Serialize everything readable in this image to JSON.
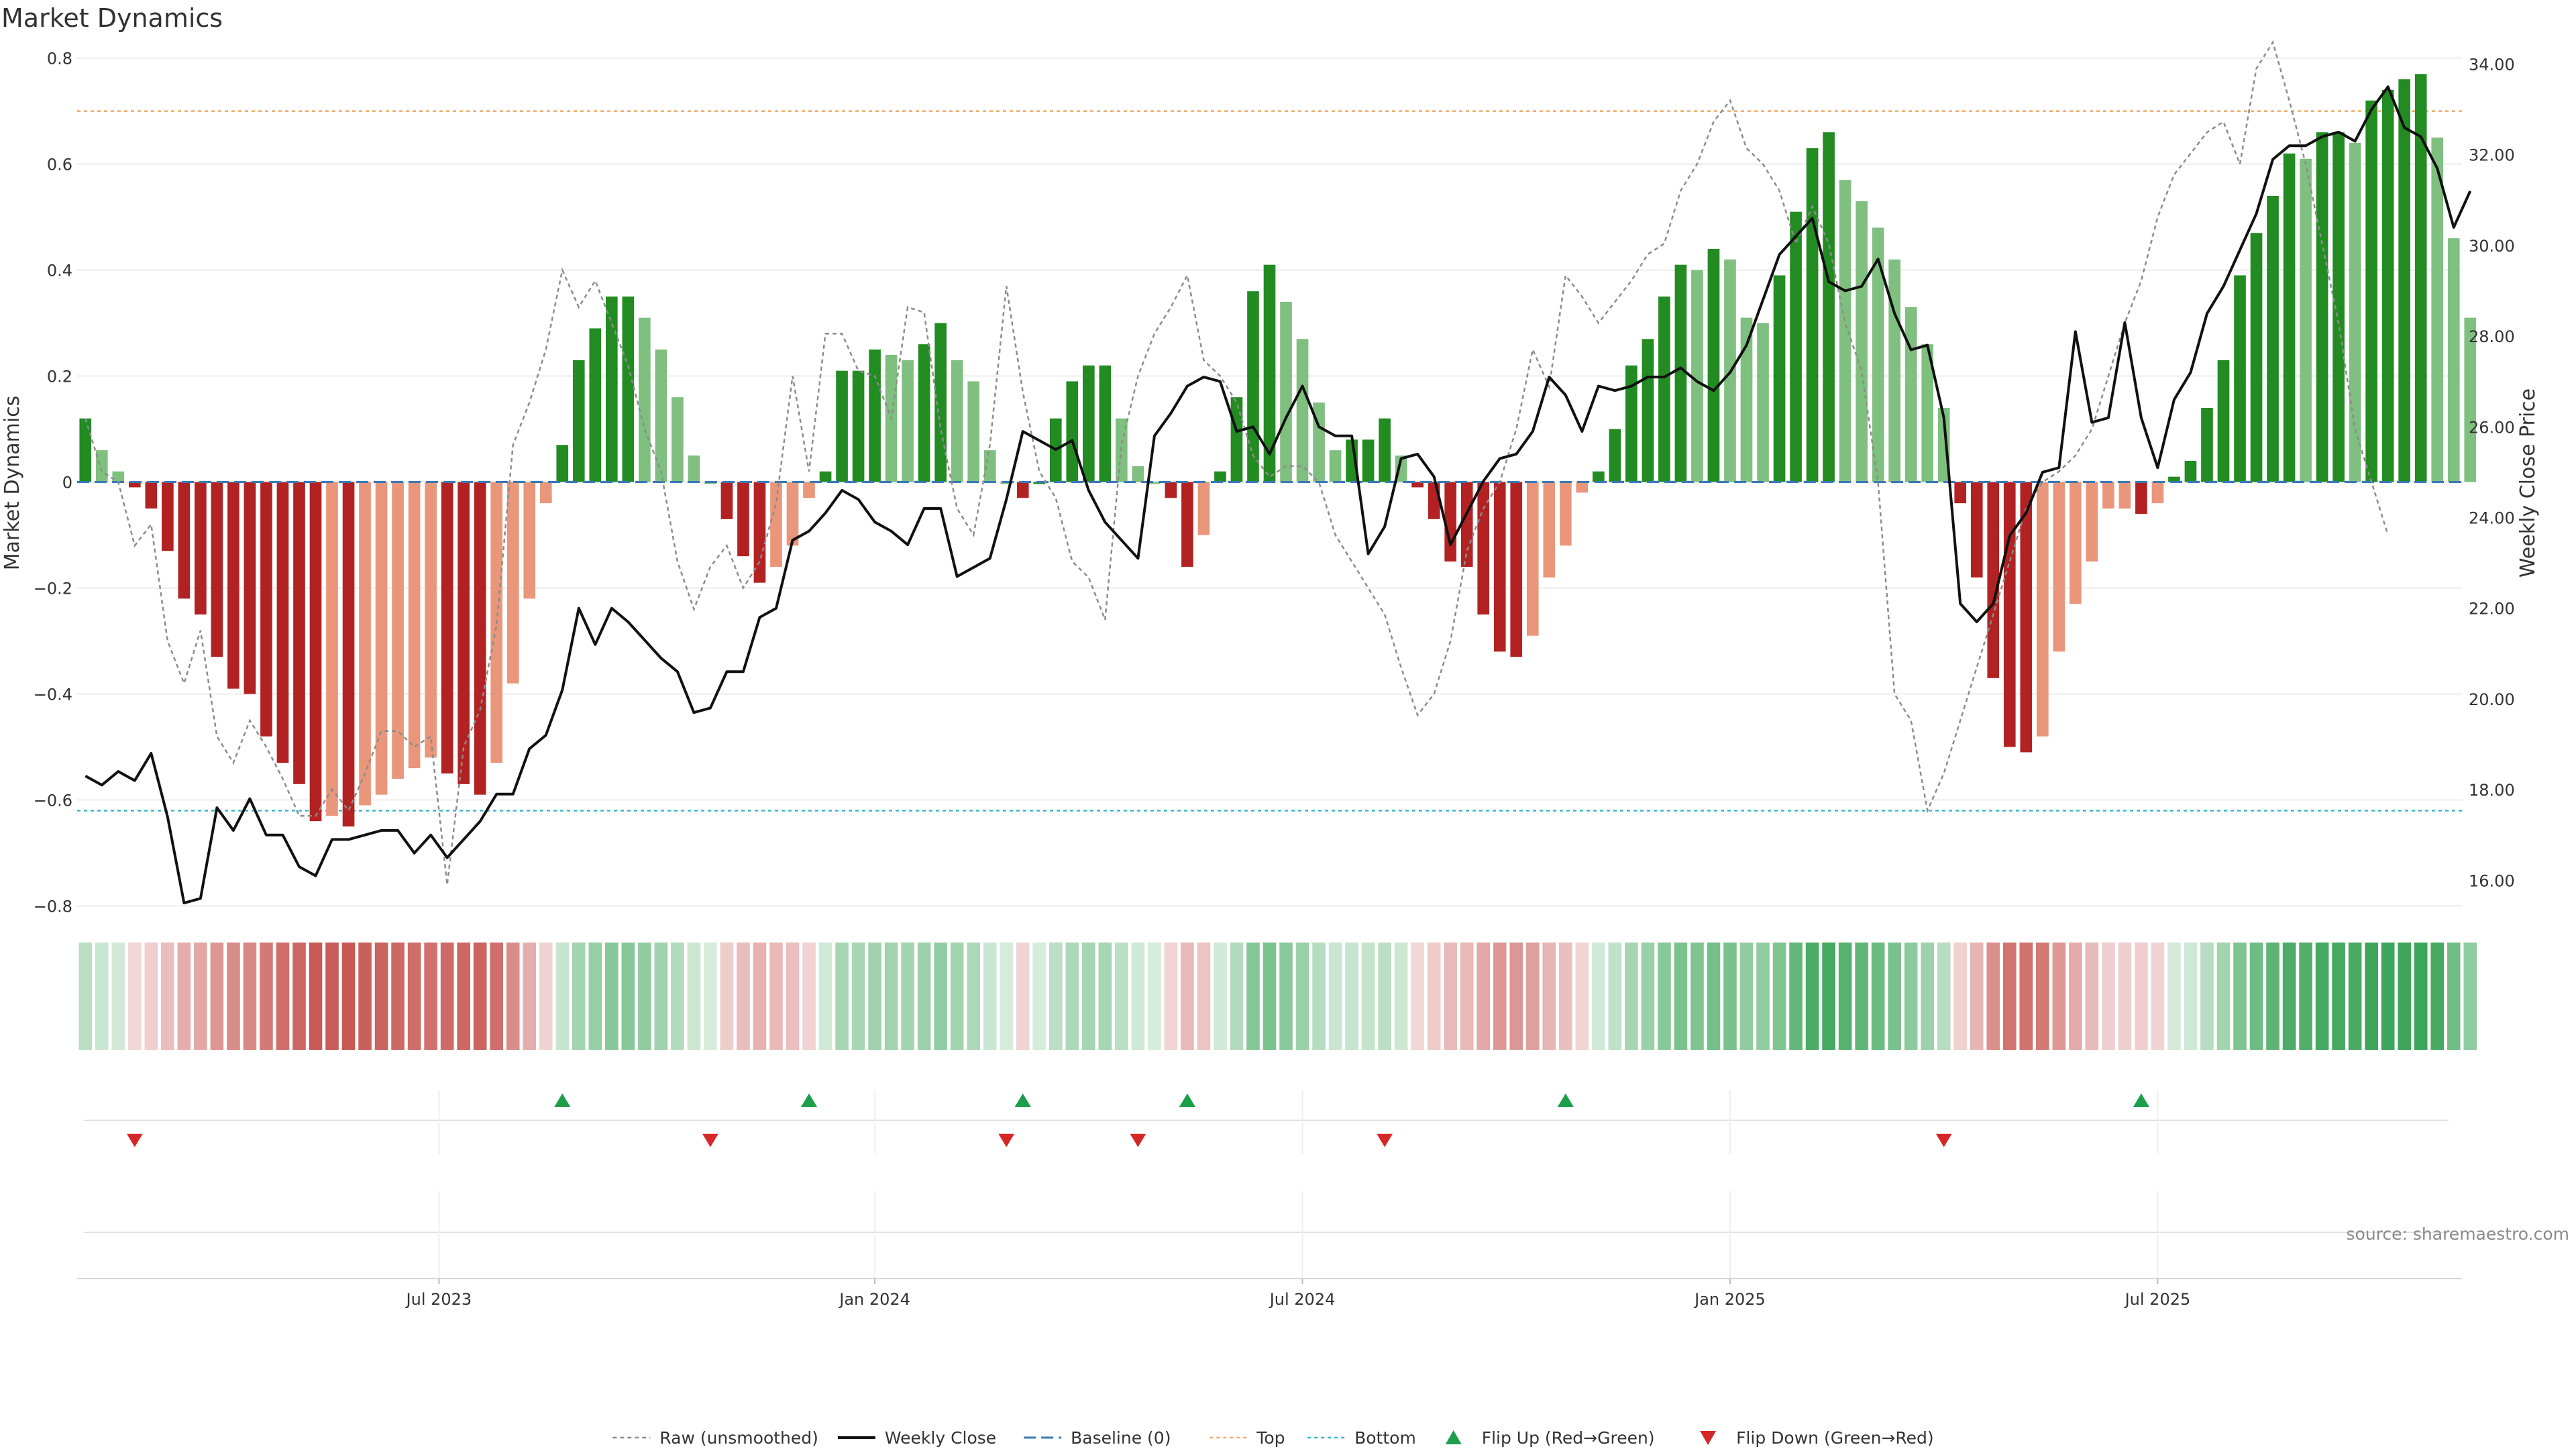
{
  "chart_data": {
    "type": "bar",
    "title": "Market Dynamics",
    "ylabel_left": "Market Dynamics",
    "ylabel_right": "Weekly Close Price",
    "left_axis": {
      "ylim": [
        -0.85,
        0.84
      ],
      "ticks": [
        -0.8,
        -0.6,
        -0.4,
        -0.2,
        0,
        0.2,
        0.4,
        0.6,
        0.8
      ],
      "tick_labels": [
        "−0.8",
        "−0.6",
        "−0.4",
        "−0.2",
        "0",
        "0.2",
        "0.4",
        "0.6",
        "0.8"
      ]
    },
    "right_axis": {
      "ylim": [
        14.85,
        34.6
      ],
      "ticks": [
        16,
        18,
        20,
        22,
        24,
        26,
        28,
        30,
        32,
        34
      ],
      "tick_labels": [
        "16.00",
        "18.00",
        "20.00",
        "22.00",
        "24.00",
        "26.00",
        "28.00",
        "30.00",
        "32.00",
        "34.00"
      ]
    },
    "x_axis": {
      "range": [
        0,
        145
      ],
      "ticks": [
        22,
        48.5,
        74.5,
        100.5,
        126.5
      ],
      "tick_labels": [
        "Jul 2023",
        "Jan 2024",
        "Jul 2024",
        "Jan 2025",
        "Jul 2025"
      ]
    },
    "grid": true,
    "top_threshold": 0.7,
    "bottom_threshold": -0.62,
    "bars": [
      0.12,
      0.06,
      0.02,
      -0.01,
      -0.05,
      -0.13,
      -0.22,
      -0.25,
      -0.33,
      -0.39,
      -0.4,
      -0.48,
      -0.53,
      -0.57,
      -0.64,
      -0.63,
      -0.65,
      -0.61,
      -0.59,
      -0.56,
      -0.54,
      -0.52,
      -0.55,
      -0.57,
      -0.59,
      -0.53,
      -0.38,
      -0.22,
      -0.04,
      0.07,
      0.23,
      0.29,
      0.35,
      0.35,
      0.31,
      0.25,
      0.16,
      0.05,
      0.0,
      -0.07,
      -0.14,
      -0.19,
      -0.16,
      -0.12,
      -0.03,
      0.02,
      0.21,
      0.21,
      0.25,
      0.24,
      0.23,
      0.26,
      0.3,
      0.23,
      0.19,
      0.06,
      0.0,
      -0.03,
      0.0,
      0.12,
      0.19,
      0.22,
      0.22,
      0.12,
      0.03,
      0.0,
      -0.03,
      -0.16,
      -0.1,
      0.02,
      0.16,
      0.36,
      0.41,
      0.34,
      0.27,
      0.15,
      0.06,
      0.08,
      0.08,
      0.12,
      0.05,
      -0.01,
      -0.07,
      -0.15,
      -0.16,
      -0.25,
      -0.32,
      -0.33,
      -0.29,
      -0.18,
      -0.12,
      -0.02,
      0.02,
      0.1,
      0.22,
      0.27,
      0.35,
      0.41,
      0.4,
      0.44,
      0.42,
      0.31,
      0.3,
      0.39,
      0.51,
      0.63,
      0.66,
      0.57,
      0.53,
      0.48,
      0.42,
      0.33,
      0.26,
      0.14,
      -0.04,
      -0.18,
      -0.37,
      -0.5,
      -0.51,
      -0.48,
      -0.32,
      -0.23,
      -0.15,
      -0.05,
      -0.05,
      -0.06,
      -0.04,
      0.01,
      0.04,
      0.14,
      0.23,
      0.39,
      0.47,
      0.54,
      0.62,
      0.61,
      0.66,
      0.66,
      0.64,
      0.72,
      0.74,
      0.76,
      0.77,
      0.65,
      0.46,
      0.31
    ],
    "raw": [
      0.12,
      0.02,
      0.0,
      -0.12,
      -0.08,
      -0.3,
      -0.38,
      -0.28,
      -0.48,
      -0.53,
      -0.45,
      -0.5,
      -0.56,
      -0.63,
      -0.63,
      -0.58,
      -0.62,
      -0.55,
      -0.47,
      -0.47,
      -0.5,
      -0.48,
      -0.76,
      -0.5,
      -0.43,
      -0.27,
      0.07,
      0.15,
      0.25,
      0.4,
      0.33,
      0.38,
      0.3,
      0.22,
      0.1,
      0.02,
      -0.15,
      -0.24,
      -0.16,
      -0.12,
      -0.2,
      -0.15,
      -0.04,
      0.2,
      0.02,
      0.28,
      0.28,
      0.21,
      0.2,
      0.12,
      0.33,
      0.32,
      0.1,
      -0.05,
      -0.1,
      0.07,
      0.37,
      0.17,
      0.02,
      -0.03,
      -0.15,
      -0.18,
      -0.26,
      0.07,
      0.2,
      0.28,
      0.33,
      0.39,
      0.23,
      0.2,
      0.15,
      0.05,
      0.01,
      0.03,
      0.03,
      0.0,
      -0.1,
      -0.15,
      -0.2,
      -0.25,
      -0.35,
      -0.44,
      -0.4,
      -0.3,
      -0.13,
      -0.05,
      0.0,
      0.1,
      0.25,
      0.18,
      0.39,
      0.35,
      0.3,
      0.34,
      0.38,
      0.43,
      0.45,
      0.55,
      0.6,
      0.68,
      0.72,
      0.63,
      0.6,
      0.55,
      0.45,
      0.52,
      0.45,
      0.3,
      0.21,
      0.0,
      -0.4,
      -0.45,
      -0.62,
      -0.55,
      -0.45,
      -0.35,
      -0.25,
      -0.15,
      -0.05,
      0.0,
      0.02,
      0.05,
      0.1,
      0.2,
      0.3,
      0.38,
      0.5,
      0.58,
      0.62,
      0.66,
      0.68,
      0.6,
      0.78,
      0.83,
      0.72,
      0.6,
      0.45,
      0.3,
      0.1,
      0.0,
      -0.1
    ],
    "close": [
      18.3,
      18.1,
      18.4,
      18.2,
      18.8,
      17.4,
      15.5,
      15.6,
      17.6,
      17.1,
      17.8,
      17.0,
      17.0,
      16.3,
      16.1,
      16.9,
      16.9,
      17.0,
      17.1,
      17.1,
      16.6,
      17.0,
      16.5,
      16.9,
      17.3,
      17.9,
      17.9,
      18.9,
      19.2,
      20.2,
      22.0,
      21.2,
      22.0,
      21.7,
      21.3,
      20.9,
      20.6,
      19.7,
      19.8,
      20.6,
      20.6,
      21.8,
      22.0,
      23.5,
      23.7,
      24.1,
      24.6,
      24.4,
      23.9,
      23.7,
      23.4,
      24.2,
      24.2,
      22.7,
      22.9,
      23.1,
      24.4,
      25.9,
      25.7,
      25.5,
      25.7,
      24.6,
      23.9,
      23.5,
      23.1,
      25.8,
      26.3,
      26.9,
      27.1,
      27.0,
      25.9,
      26.0,
      25.4,
      26.2,
      26.9,
      26.0,
      25.8,
      25.8,
      23.2,
      23.8,
      25.3,
      25.4,
      24.9,
      23.4,
      24.1,
      24.8,
      25.3,
      25.4,
      25.9,
      27.1,
      26.7,
      25.9,
      26.9,
      26.8,
      26.9,
      27.1,
      27.1,
      27.3,
      27.0,
      26.8,
      27.2,
      27.8,
      28.8,
      29.8,
      30.2,
      30.6,
      29.2,
      29.0,
      29.1,
      29.7,
      28.5,
      27.7,
      27.8,
      26.2,
      22.1,
      21.7,
      22.1,
      23.6,
      24.1,
      25.0,
      25.1,
      28.1,
      26.1,
      26.2,
      28.3,
      26.2,
      25.1,
      26.6,
      27.2,
      28.5,
      29.1,
      29.9,
      30.7,
      31.9,
      32.2,
      32.2,
      32.4,
      32.5,
      32.3,
      33.0,
      33.5,
      32.6,
      32.4,
      31.7,
      30.4,
      31.2
    ],
    "heat_strip": "bar colour intensity by value",
    "flip_up_x": [
      29,
      44,
      57,
      67,
      90,
      125
    ],
    "flip_down_x": [
      3,
      38,
      56,
      64,
      79,
      113
    ],
    "legend": [
      "Raw (unsmoothed)",
      "Weekly Close",
      "Baseline (0)",
      "Top",
      "Bottom",
      "Flip Up (Red→Green)",
      "Flip Down (Green→Red)"
    ],
    "legend_placement": "bottom-center",
    "colors": {
      "strong_up": "#228b22",
      "weak_up": "#7fbf7f",
      "strong_down": "#b22222",
      "weak_down": "#e9967a",
      "close_line": "#111111",
      "raw_line": "#8c8c8c",
      "baseline": "#3a7ab8",
      "top": "#f0a96b",
      "bottom": "#35b8c7",
      "flip_up": "#1e9e4a",
      "flip_down": "#d62728"
    },
    "source": "source: sharemaestro.com"
  }
}
